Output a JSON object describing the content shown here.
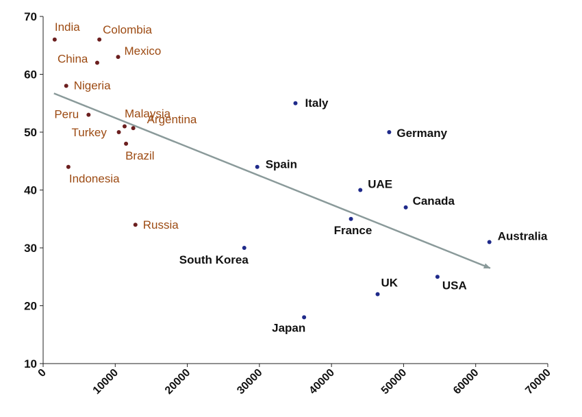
{
  "chart_data": {
    "type": "scatter",
    "title": "",
    "xlabel": "",
    "ylabel": "",
    "xlim": [
      0,
      70000
    ],
    "ylim": [
      10,
      70
    ],
    "x_ticks": [
      "0",
      "10000",
      "20000",
      "30000",
      "40000",
      "50000",
      "60000",
      "70000"
    ],
    "y_ticks": [
      "10",
      "20",
      "30",
      "40",
      "50",
      "60",
      "70"
    ],
    "grid": false,
    "legend": "none",
    "colors": {
      "group_a_marker": "#6b1f1f",
      "group_a_label": "#9c4a12",
      "group_b_marker": "#1f2a8a",
      "group_b_label": "#111111",
      "trendline": "#8a9a9a"
    },
    "trendline": {
      "x": [
        1500,
        62000
      ],
      "y": [
        56.7,
        26.5
      ]
    },
    "series": [
      {
        "points": [
          {
            "label": "India",
            "x": 1600,
            "y": 66
          },
          {
            "label": "Colombia",
            "x": 7800,
            "y": 66
          },
          {
            "label": "China",
            "x": 7500,
            "y": 62
          },
          {
            "label": "Mexico",
            "x": 10400,
            "y": 63
          },
          {
            "label": "Nigeria",
            "x": 3200,
            "y": 58
          },
          {
            "label": "Peru",
            "x": 6300,
            "y": 53
          },
          {
            "label": "Malaysia",
            "x": 11300,
            "y": 51
          },
          {
            "label": "Argentina",
            "x": 12500,
            "y": 50.7
          },
          {
            "label": "Turkey",
            "x": 10500,
            "y": 50
          },
          {
            "label": "Brazil",
            "x": 11500,
            "y": 48
          },
          {
            "label": "Indonesia",
            "x": 3500,
            "y": 44
          },
          {
            "label": "Russia",
            "x": 12800,
            "y": 34
          }
        ]
      },
      {
        "points": [
          {
            "label": "Italy",
            "x": 35000,
            "y": 55
          },
          {
            "label": "Germany",
            "x": 48000,
            "y": 50
          },
          {
            "label": "Spain",
            "x": 29700,
            "y": 44
          },
          {
            "label": "UAE",
            "x": 44000,
            "y": 40
          },
          {
            "label": "Canada",
            "x": 50300,
            "y": 37
          },
          {
            "label": "France",
            "x": 42700,
            "y": 35
          },
          {
            "label": "Australia",
            "x": 61900,
            "y": 31
          },
          {
            "label": "South Korea",
            "x": 27900,
            "y": 30
          },
          {
            "label": "USA",
            "x": 54700,
            "y": 25
          },
          {
            "label": "UK",
            "x": 46400,
            "y": 22
          },
          {
            "label": "Japan",
            "x": 36200,
            "y": 18
          }
        ]
      }
    ]
  }
}
